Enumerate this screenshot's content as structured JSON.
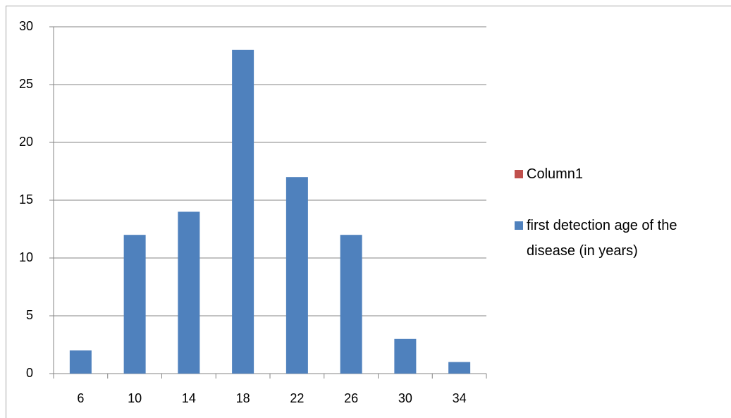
{
  "chart_data": {
    "type": "bar",
    "categories": [
      "6",
      "10",
      "14",
      "18",
      "22",
      "26",
      "30",
      "34"
    ],
    "series": [
      {
        "name": "Column1",
        "color": "#c0504d",
        "values": [
          null,
          null,
          null,
          null,
          null,
          null,
          null,
          null
        ]
      },
      {
        "name": "first detection age of the disease (in years)",
        "color": "#4f81bd",
        "values": [
          2,
          12,
          14,
          28,
          17,
          12,
          3,
          1
        ]
      }
    ],
    "ylim": [
      0,
      30
    ],
    "yticks": [
      0,
      5,
      10,
      15,
      20,
      25,
      30
    ],
    "grid": true,
    "legend": "right"
  }
}
